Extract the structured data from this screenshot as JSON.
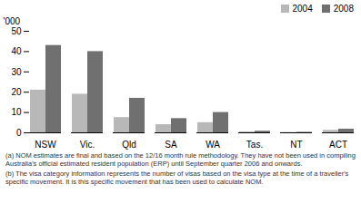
{
  "chart_data": {
    "type": "bar",
    "categories": [
      "NSW",
      "Vic.",
      "Qld",
      "SA",
      "WA",
      "Tas.",
      "NT",
      "ACT"
    ],
    "series": [
      {
        "name": "2004",
        "color": "#b8b8b8",
        "values": [
          21,
          19,
          7.5,
          4,
          5,
          0.5,
          0.15,
          1.2
        ]
      },
      {
        "name": "2008",
        "color": "#707070",
        "values": [
          43,
          40,
          17,
          7,
          10,
          0.8,
          0.25,
          1.8
        ]
      }
    ],
    "ylabel": "'000",
    "ylim": [
      0,
      50
    ],
    "yticks": [
      0,
      10,
      20,
      30,
      40,
      50
    ],
    "legend": "upper right",
    "grid": false,
    "annotations": [
      "(a) NOM estimates are final and based on the 12/16 month rule methodology. They have not been used in compiling Australia's official estimated resident population (ERP) until September quarter 2006 and onwards.",
      "(b) The visa category information represents the number of visas based on the visa type at the time of a traveller's specific movement. It is this specific movement that has been used to calculate NOM."
    ]
  }
}
